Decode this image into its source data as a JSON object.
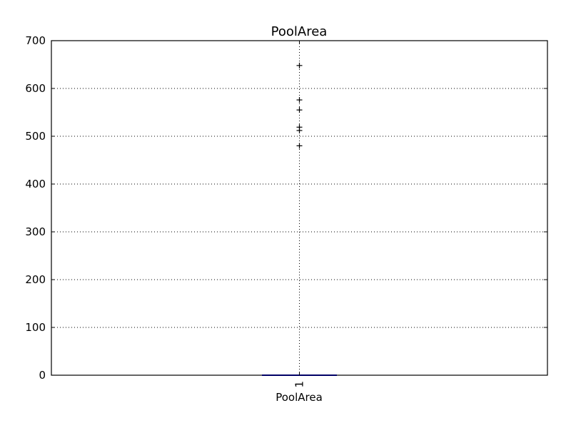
{
  "chart_data": {
    "type": "box",
    "title": "PoolArea",
    "xlabel": "PoolArea",
    "ylabel": "",
    "categories": [
      "1"
    ],
    "ylim": [
      0,
      700
    ],
    "yticks": [
      0,
      100,
      200,
      300,
      400,
      500,
      600,
      700
    ],
    "grid": true,
    "boxes": [
      {
        "category": "1",
        "min": 0,
        "q1": 0,
        "median": 0,
        "q3": 0,
        "max": 0,
        "outliers": [
          480,
          512,
          519,
          555,
          576,
          648
        ]
      }
    ],
    "colors": {
      "box": "#0000ff",
      "median": "#ff0000",
      "outlier": "#000000",
      "grid": "#000000",
      "axes": "#000000"
    }
  }
}
